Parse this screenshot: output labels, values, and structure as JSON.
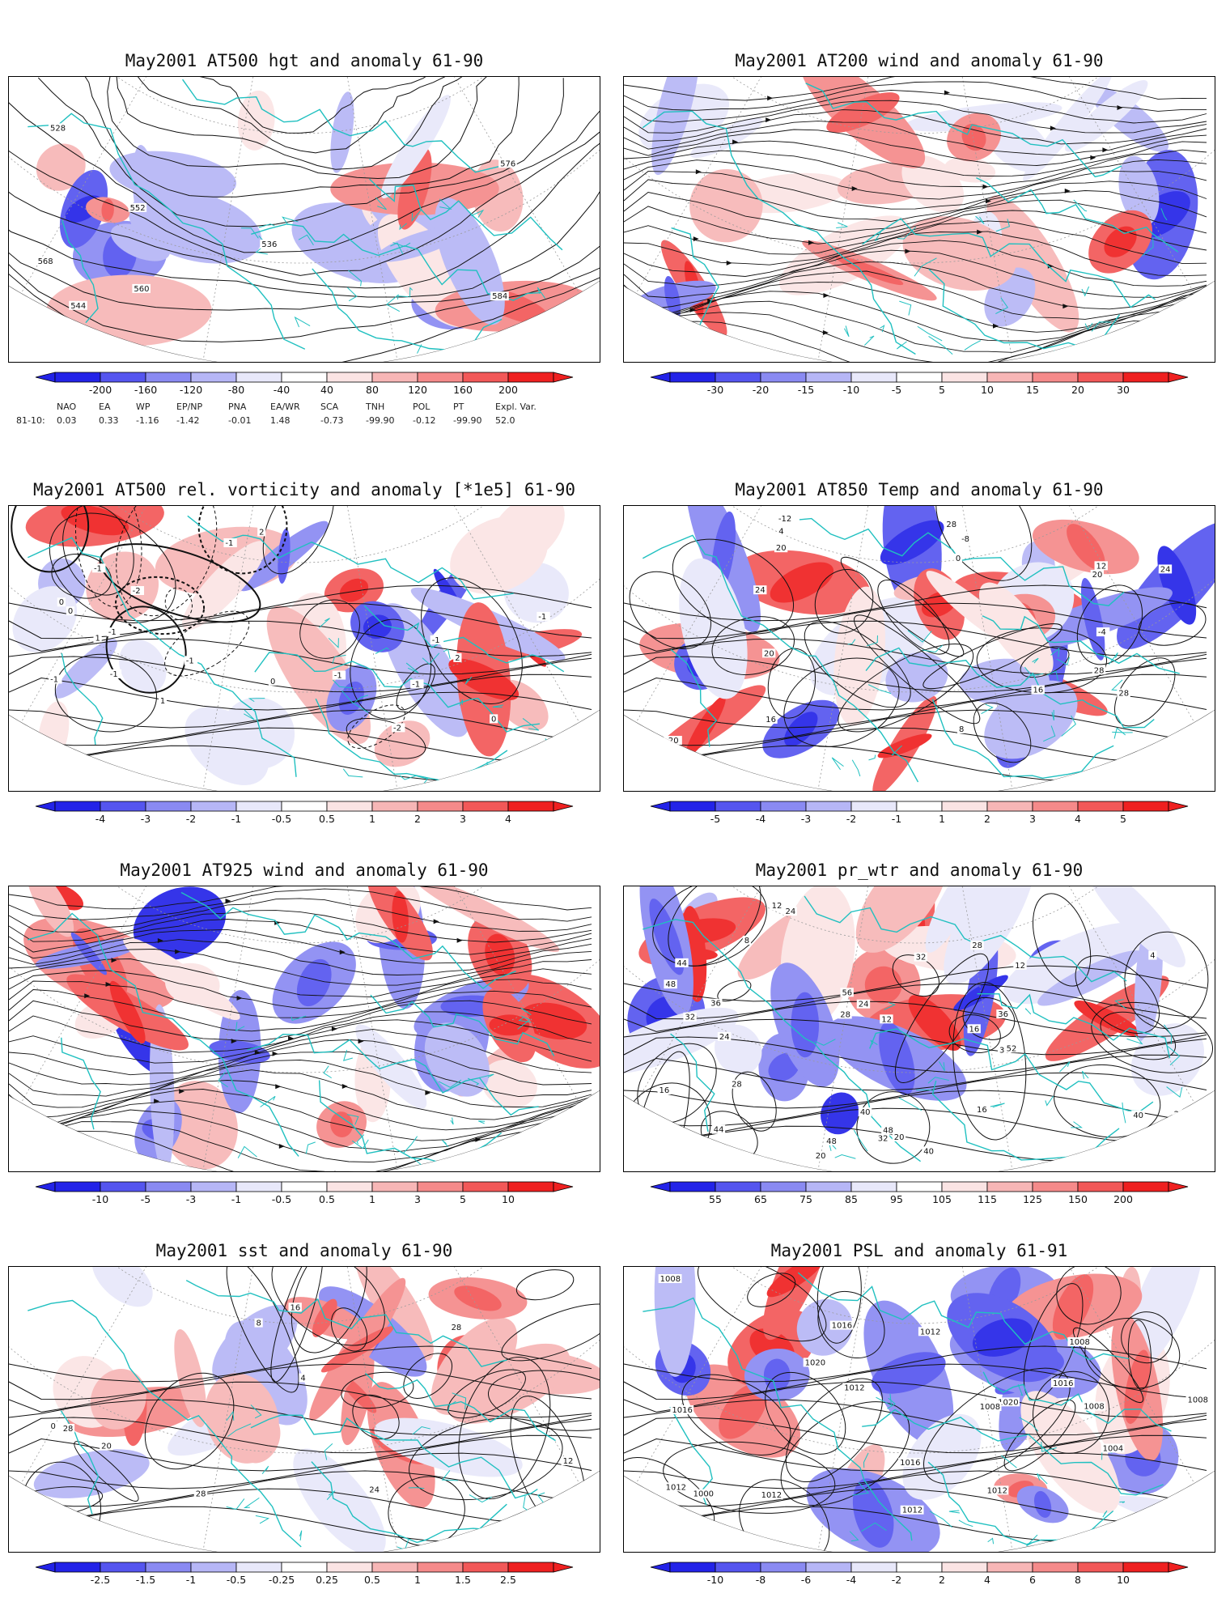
{
  "colors": {
    "coast": "#20c0c0",
    "contour": "#111111",
    "graticule": "#9a9a9a",
    "neg": [
      "#e8e8fa",
      "#b6b6f6",
      "#8a8af2",
      "#5555ef",
      "#2323e8"
    ],
    "pos": [
      "#fbe4e4",
      "#f7b6b6",
      "#f58a8a",
      "#f25858",
      "#ef2020"
    ]
  },
  "panels": [
    {
      "id": "p1",
      "title": "May2001 AT500 hgt and anomaly 61-90",
      "colorbar": [
        "-200",
        "-160",
        "-120",
        "-80",
        "-40",
        "40",
        "80",
        "120",
        "160",
        "200"
      ],
      "contour_labels": [
        "528",
        "536",
        "544",
        "552",
        "560",
        "568",
        "576",
        "584"
      ]
    },
    {
      "id": "p2",
      "title": "May2001 AT200 wind and anomaly 61-90",
      "colorbar": [
        "-30",
        "-20",
        "-15",
        "-10",
        "-5",
        "5",
        "10",
        "15",
        "20",
        "30"
      ],
      "contour_labels": []
    },
    {
      "id": "p3",
      "title": "May2001 AT500 rel. vorticity and anomaly [*1e5] 61-90",
      "colorbar": [
        "-4",
        "-3",
        "-2",
        "-1",
        "-0.5",
        "0.5",
        "1",
        "2",
        "3",
        "4"
      ],
      "contour_labels": [
        "-1",
        "-1",
        "-2",
        "2",
        "-1",
        "0",
        "1",
        "-2",
        "2",
        "-1",
        "-1",
        "-1",
        "0",
        "0",
        "-1",
        "1",
        "-1",
        "-1",
        "0",
        "0",
        "-1"
      ]
    },
    {
      "id": "p4",
      "title": "May2001 AT850 Temp and anomaly 61-90",
      "colorbar": [
        "-5",
        "-4",
        "-3",
        "-2",
        "-1",
        "1",
        "2",
        "3",
        "4",
        "5"
      ],
      "contour_labels": [
        "-20",
        "-16",
        "-12",
        "-8",
        "-4",
        "0",
        "4",
        "8",
        "12",
        "16",
        "20",
        "24",
        "28",
        "28",
        "20",
        "16",
        "24",
        "28",
        "20"
      ]
    },
    {
      "id": "p5",
      "title": "May2001 AT925 wind and anomaly 61-90",
      "colorbar": [
        "-10",
        "-5",
        "-3",
        "-1",
        "-0.5",
        "0.5",
        "1",
        "3",
        "5",
        "10"
      ],
      "contour_labels": []
    },
    {
      "id": "p6",
      "title": "May2001 pr_wtr and anomaly 61-90",
      "colorbar": [
        "55",
        "65",
        "75",
        "85",
        "95",
        "105",
        "115",
        "125",
        "150",
        "200"
      ],
      "contour_labels": [
        "48",
        "36",
        "28",
        "8",
        "4",
        "16",
        "32",
        "40",
        "36",
        "24",
        "12",
        "20",
        "16",
        "12",
        "56",
        "52",
        "44",
        "40",
        "48",
        "24",
        "28",
        "32",
        "20",
        "12",
        "16",
        "24",
        "20",
        "28",
        "32",
        "36",
        "40",
        "44",
        "48"
      ]
    },
    {
      "id": "p7",
      "title": "May2001 sst and anomaly 61-90",
      "colorbar": [
        "-2.5",
        "-1.5",
        "-1",
        "-0.5",
        "-0.25",
        "0.25",
        "0.5",
        "1",
        "1.5",
        "2.5"
      ],
      "contour_labels": [
        "0",
        "4",
        "8",
        "12",
        "16",
        "20",
        "24",
        "28",
        "28",
        "28"
      ]
    },
    {
      "id": "p8",
      "title": "May2001 PSL and anomaly 61-91",
      "colorbar": [
        "-10",
        "-8",
        "-6",
        "-4",
        "-2",
        "2",
        "4",
        "6",
        "8",
        "10"
      ],
      "contour_labels": [
        "1012",
        "1016",
        "1012",
        "1008",
        "1008",
        "1020",
        "1016",
        "1012",
        "1016",
        "1020",
        "1012",
        "1008",
        "1012",
        "1008",
        "1012",
        "1008",
        "1016",
        "1012",
        "1004",
        "1000"
      ]
    }
  ],
  "indices": {
    "row_label": "81-10:",
    "names": [
      "NAO",
      "EA",
      "WP",
      "EP/NP",
      "PNA",
      "EA/WR",
      "SCA",
      "TNH",
      "POL",
      "PT",
      "Expl. Var."
    ],
    "values": [
      "0.03",
      "0.33",
      "-1.16",
      "-1.42",
      "-0.01",
      "1.48",
      "-0.73",
      "-99.90",
      "-0.12",
      "-99.90",
      "52.0"
    ]
  }
}
